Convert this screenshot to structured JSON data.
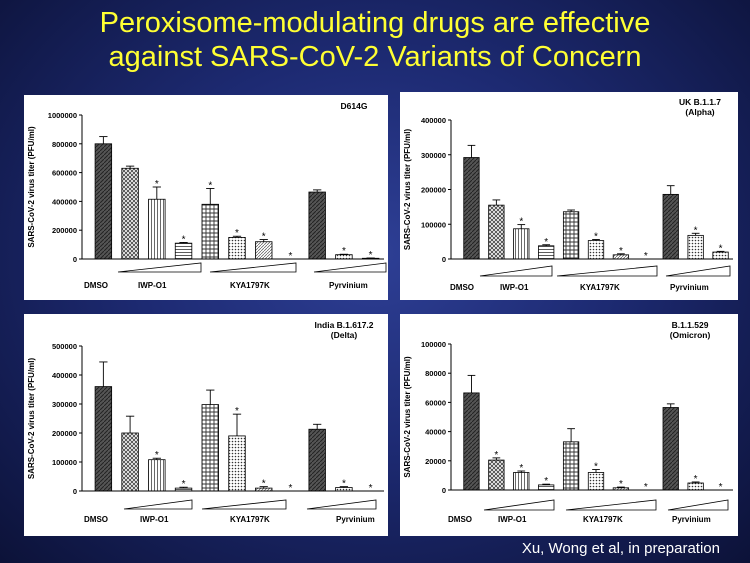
{
  "slide": {
    "title_line1": "Peroxisome-modulating drugs are effective",
    "title_line2": "against SARS-CoV-2 Variants of Concern",
    "citation": "Xu, Wong et al, in preparation"
  },
  "chart_data": [
    {
      "type": "bar",
      "title": "D614G",
      "ylabel": "SARS-CoV-2 virus titer (PFU/ml)",
      "ylim": [
        0,
        1000000
      ],
      "yticks": [
        "0",
        "200000",
        "400000",
        "600000",
        "800000",
        "1000000"
      ],
      "group_labels": [
        "DMSO",
        "IWP-O1",
        "KYA1797K",
        "Pyrvinium"
      ],
      "values": [
        800000,
        630000,
        415000,
        110000,
        380000,
        150000,
        120000,
        0,
        465000,
        30000,
        5000
      ],
      "errors": [
        50000,
        15000,
        85000,
        5000,
        110000,
        8000,
        15000,
        0,
        15000,
        3000,
        2000
      ],
      "significant": [
        false,
        false,
        true,
        true,
        true,
        true,
        true,
        true,
        false,
        true,
        true
      ]
    },
    {
      "type": "bar",
      "title": "UK B.1.1.7",
      "subtitle": "(Alpha)",
      "ylabel": "SARS-CoV-2 virus titer (PFU/ml)",
      "ylim": [
        0,
        400000
      ],
      "yticks": [
        "0",
        "100000",
        "200000",
        "300000",
        "400000"
      ],
      "group_labels": [
        "DMSO",
        "IWP-O1",
        "KYA1797K",
        "Pyrvinium"
      ],
      "values": [
        292000,
        155000,
        87000,
        38000,
        136000,
        53000,
        12000,
        0,
        186000,
        68000,
        20000
      ],
      "errors": [
        35000,
        15000,
        12000,
        3000,
        5000,
        3000,
        3000,
        0,
        25000,
        6000,
        2000
      ],
      "significant": [
        false,
        false,
        true,
        true,
        false,
        true,
        true,
        true,
        false,
        true,
        true
      ]
    },
    {
      "type": "bar",
      "title": "India B.1.617.2",
      "subtitle": "(Delta)",
      "ylabel": "SARS-CoV-2 virus titer (PFU/ml)",
      "ylim": [
        0,
        500000
      ],
      "yticks": [
        "0",
        "100000",
        "200000",
        "300000",
        "400000",
        "500000"
      ],
      "group_labels": [
        "DMSO",
        "IWP-O1",
        "KYA1797K",
        "Pyrvinium"
      ],
      "values": [
        360000,
        200000,
        108000,
        10000,
        298000,
        190000,
        10000,
        0,
        213000,
        12000,
        0
      ],
      "errors": [
        85000,
        58000,
        5000,
        3000,
        50000,
        75000,
        5000,
        0,
        17000,
        3000,
        0
      ],
      "significant": [
        false,
        false,
        true,
        true,
        false,
        true,
        true,
        true,
        false,
        true,
        true
      ]
    },
    {
      "type": "bar",
      "title": "B.1.1.529",
      "subtitle": "(Omicron)",
      "ylabel": "SARS-CoV-2 virus titer (PFU/ml)",
      "ylim": [
        0,
        100000
      ],
      "yticks": [
        "0",
        "20000",
        "40000",
        "60000",
        "80000",
        "100000"
      ],
      "group_labels": [
        "DMSO",
        "IWP-O1",
        "KYA1797K",
        "Pyrvinium"
      ],
      "values": [
        66500,
        20500,
        12000,
        3500,
        33000,
        12000,
        1500,
        0,
        56500,
        4800,
        0
      ],
      "errors": [
        12000,
        1500,
        1000,
        500,
        9000,
        2000,
        500,
        0,
        2500,
        700,
        0
      ],
      "significant": [
        false,
        true,
        true,
        true,
        false,
        true,
        true,
        true,
        false,
        true,
        true
      ]
    }
  ]
}
